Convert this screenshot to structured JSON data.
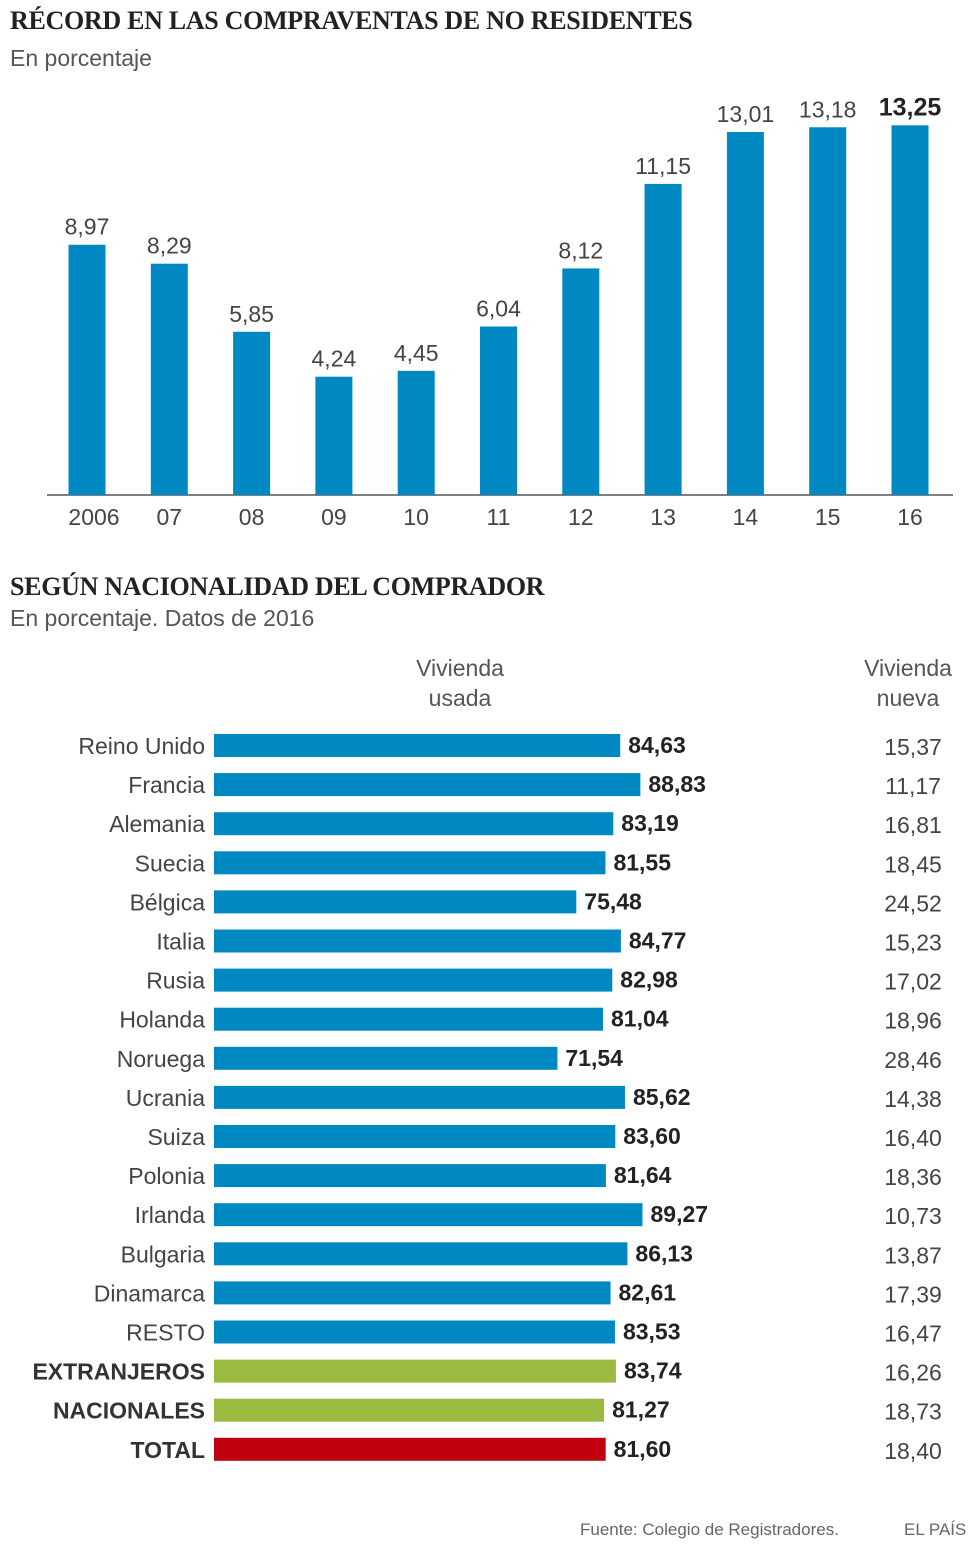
{
  "colors": {
    "blue": "#0088c2",
    "green": "#9bbb40",
    "red": "#c1000f",
    "axis": "#555555"
  },
  "chart_data": [
    {
      "type": "bar",
      "title": "RÉCORD EN LAS COMPRAVENTAS DE NO RESIDENTES",
      "subtitle": "En porcentaje",
      "categories": [
        "2006",
        "07",
        "08",
        "09",
        "10",
        "11",
        "12",
        "13",
        "14",
        "15",
        "16"
      ],
      "values": [
        8.97,
        8.29,
        5.85,
        4.24,
        4.45,
        6.04,
        8.12,
        11.15,
        13.01,
        13.18,
        13.25
      ],
      "value_labels": [
        "8,97",
        "8,29",
        "5,85",
        "4,24",
        "4,45",
        "6,04",
        "8,12",
        "11,15",
        "13,01",
        "13,18",
        "13,25"
      ],
      "highlight_last": true,
      "ylim": [
        0,
        14.5
      ],
      "grid": false
    },
    {
      "type": "bar",
      "orientation": "horizontal",
      "title": "SEGÚN NACIONALIDAD DEL COMPRADOR",
      "subtitle": "En porcentaje. Datos de 2016",
      "col_used": "Vivienda usada",
      "col_new": "Vivienda nueva",
      "xlim": [
        0,
        100
      ],
      "rows": [
        {
          "label": "Reino Unido",
          "used": 84.63,
          "used_label": "84,63",
          "new_label": "15,37",
          "group": "country"
        },
        {
          "label": "Francia",
          "used": 88.83,
          "used_label": "88,83",
          "new_label": "11,17",
          "group": "country"
        },
        {
          "label": "Alemania",
          "used": 83.19,
          "used_label": "83,19",
          "new_label": "16,81",
          "group": "country"
        },
        {
          "label": "Suecia",
          "used": 81.55,
          "used_label": "81,55",
          "new_label": "18,45",
          "group": "country"
        },
        {
          "label": "Bélgica",
          "used": 75.48,
          "used_label": "75,48",
          "new_label": "24,52",
          "group": "country"
        },
        {
          "label": "Italia",
          "used": 84.77,
          "used_label": "84,77",
          "new_label": "15,23",
          "group": "country"
        },
        {
          "label": "Rusia",
          "used": 82.98,
          "used_label": "82,98",
          "new_label": "17,02",
          "group": "country"
        },
        {
          "label": "Holanda",
          "used": 81.04,
          "used_label": "81,04",
          "new_label": "18,96",
          "group": "country"
        },
        {
          "label": "Noruega",
          "used": 71.54,
          "used_label": "71,54",
          "new_label": "28,46",
          "group": "country"
        },
        {
          "label": "Ucrania",
          "used": 85.62,
          "used_label": "85,62",
          "new_label": "14,38",
          "group": "country"
        },
        {
          "label": "Suiza",
          "used": 83.6,
          "used_label": "83,60",
          "new_label": "16,40",
          "group": "country"
        },
        {
          "label": "Polonia",
          "used": 81.64,
          "used_label": "81,64",
          "new_label": "18,36",
          "group": "country"
        },
        {
          "label": "Irlanda",
          "used": 89.27,
          "used_label": "89,27",
          "new_label": "10,73",
          "group": "country"
        },
        {
          "label": "Bulgaria",
          "used": 86.13,
          "used_label": "86,13",
          "new_label": "13,87",
          "group": "country"
        },
        {
          "label": "Dinamarca",
          "used": 82.61,
          "used_label": "82,61",
          "new_label": "17,39",
          "group": "country"
        },
        {
          "label": "RESTO",
          "used": 83.53,
          "used_label": "83,53",
          "new_label": "16,47",
          "group": "country"
        },
        {
          "label": "EXTRANJEROS",
          "used": 83.74,
          "used_label": "83,74",
          "new_label": "16,26",
          "group": "aggregate"
        },
        {
          "label": "NACIONALES",
          "used": 81.27,
          "used_label": "81,27",
          "new_label": "18,73",
          "group": "aggregate"
        },
        {
          "label": "TOTAL",
          "used": 81.6,
          "used_label": "81,60",
          "new_label": "18,40",
          "group": "total"
        }
      ]
    }
  ],
  "footer": {
    "source": "Fuente: Colegio de Registradores.",
    "brand": "EL PAÍS"
  }
}
